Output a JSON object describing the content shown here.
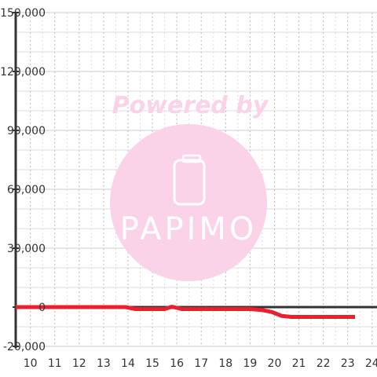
{
  "watermark": {
    "powered_by": "Powered by",
    "brand": "PAPIMO",
    "color": "#fbd3e9"
  },
  "chart_data": {
    "type": "line",
    "title": "",
    "xlabel": "",
    "ylabel": "",
    "xlim": [
      9.4,
      24.2
    ],
    "ylim": [
      -20000,
      150000
    ],
    "x_ticks": [
      10,
      11,
      12,
      13,
      14,
      15,
      16,
      17,
      18,
      19,
      20,
      21,
      22,
      23,
      24
    ],
    "x_tick_labels": [
      "10",
      "11",
      "12",
      "13",
      "14",
      "15",
      "16",
      "17",
      "18",
      "19",
      "20",
      "21",
      "22",
      "23",
      "24"
    ],
    "y_ticks": [
      -20000,
      0,
      30000,
      60000,
      90000,
      120000,
      150000
    ],
    "y_tick_labels": [
      "-20,000",
      "0",
      "30,000",
      "60,000",
      "90,000",
      "120,000",
      "150,000"
    ],
    "grid": true,
    "legend": "none",
    "colors": {
      "series": "#e8202f",
      "axis": "#333333",
      "grid_major": "#cccccc",
      "grid_minor": "#dddddd"
    },
    "series": [
      {
        "x": [
          9.4,
          10,
          11,
          12,
          13,
          13.9,
          14.3,
          15,
          15.5,
          15.8,
          16.2,
          17,
          18,
          19,
          19.5,
          19.9,
          20.3,
          20.7,
          21,
          22,
          23,
          23.3
        ],
        "y": [
          0,
          0,
          0,
          0,
          0,
          0,
          -1000,
          -1000,
          -1000,
          200,
          -1000,
          -1000,
          -1000,
          -1000,
          -1500,
          -2500,
          -4500,
          -5000,
          -5000,
          -5000,
          -5000,
          -5000
        ]
      }
    ]
  }
}
